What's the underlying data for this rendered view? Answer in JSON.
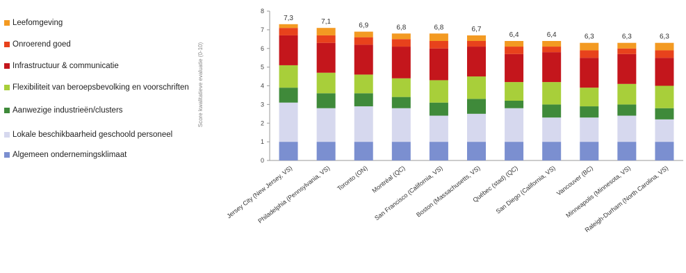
{
  "chart_data": {
    "type": "bar",
    "stacked": true,
    "ylabel": "Score kwalitatieve evaluatie (0-10)",
    "ylim": [
      0,
      8
    ],
    "yticks": [
      0,
      1,
      2,
      3,
      4,
      5,
      6,
      7,
      8
    ],
    "grid": false,
    "legend_position": "left",
    "categories": [
      "Jersey City (New Jersey, VS)",
      "Philadelphia (Pennsylvania, VS)",
      "Toronto (ON)",
      "Montréal (QC)",
      "San Francisco (California, VS)",
      "Boston (Massachusetts, VS)",
      "Québec (stad) (QC)",
      "San Diego (California, VS)",
      "Vancouver (BC)",
      "Minneapolis (Minnesota, VS)",
      "Raleigh-Durham (North Carolina, VS)"
    ],
    "totals": [
      7.3,
      7.1,
      6.9,
      6.8,
      6.8,
      6.7,
      6.4,
      6.4,
      6.3,
      6.3,
      6.3
    ],
    "total_labels": [
      "7,3",
      "7,1",
      "6,9",
      "6,8",
      "6,8",
      "6,7",
      "6,4",
      "6,4",
      "6,3",
      "6,3",
      "6,3"
    ],
    "series": [
      {
        "name": "Algemeen ondernemingsklimaat",
        "color": "#7b8fd0",
        "values": [
          1.0,
          1.0,
          1.0,
          1.0,
          1.0,
          1.0,
          1.0,
          1.0,
          1.0,
          1.0,
          1.0
        ]
      },
      {
        "name": "Lokale beschikbaarheid geschoold personeel",
        "color": "#d6d8ee",
        "values": [
          2.1,
          1.8,
          1.9,
          1.8,
          1.4,
          1.5,
          1.8,
          1.3,
          1.3,
          1.4,
          1.2
        ]
      },
      {
        "name": "Aanwezige industrieën/clusters",
        "color": "#3f8a3a",
        "values": [
          0.8,
          0.8,
          0.7,
          0.6,
          0.7,
          0.8,
          0.4,
          0.7,
          0.6,
          0.6,
          0.6
        ]
      },
      {
        "name": "Flexibiliteit van beroepsbevolking en voorschriften",
        "color": "#a8cf3a",
        "values": [
          1.2,
          1.1,
          1.0,
          1.0,
          1.2,
          1.2,
          1.0,
          1.2,
          1.0,
          1.1,
          1.2
        ]
      },
      {
        "name": "Infrastructuur & communicatie",
        "color": "#c4161c",
        "values": [
          1.6,
          1.6,
          1.6,
          1.7,
          1.7,
          1.6,
          1.5,
          1.6,
          1.6,
          1.6,
          1.5
        ]
      },
      {
        "name": "Onroerend goed",
        "color": "#e8421c",
        "values": [
          0.4,
          0.4,
          0.4,
          0.4,
          0.4,
          0.3,
          0.4,
          0.3,
          0.4,
          0.3,
          0.4
        ]
      },
      {
        "name": "Leefomgeving",
        "color": "#f39a22",
        "values": [
          0.2,
          0.4,
          0.3,
          0.3,
          0.4,
          0.3,
          0.3,
          0.3,
          0.4,
          0.3,
          0.4
        ]
      }
    ]
  }
}
